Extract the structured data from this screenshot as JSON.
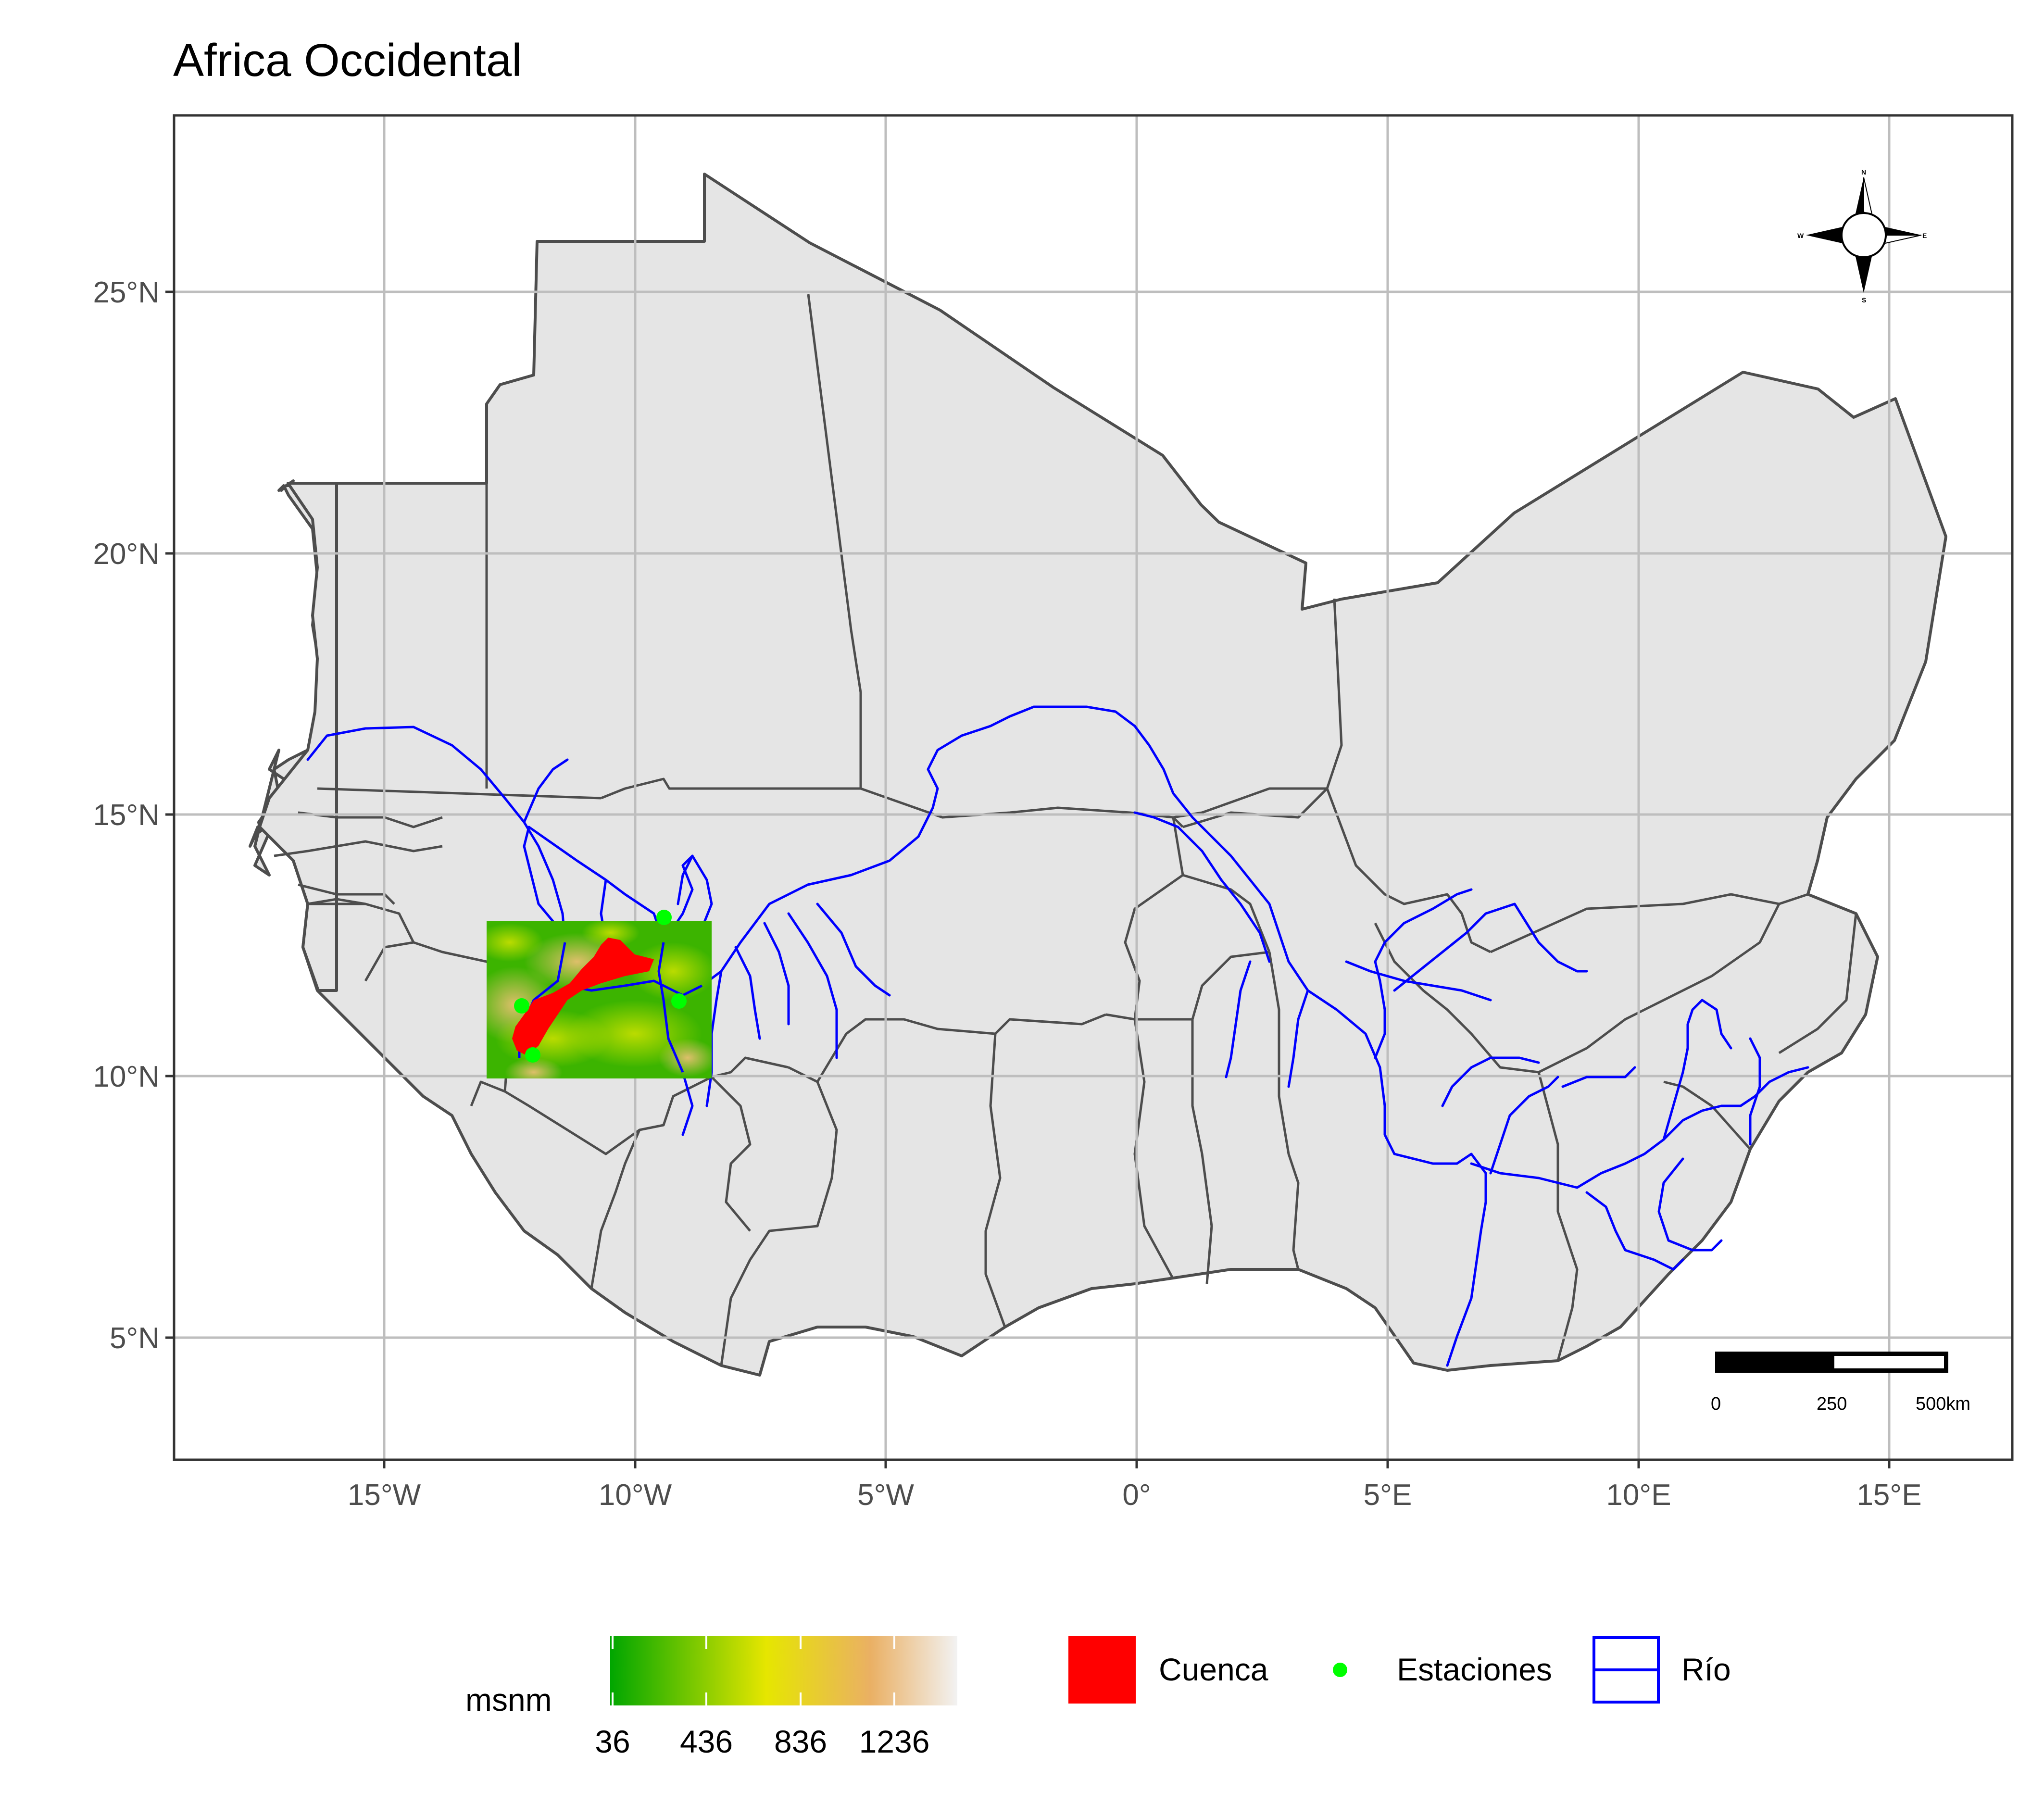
{
  "title": "Africa Occidental",
  "chart_data": {
    "type": "map",
    "title": "Africa Occidental",
    "region": "West Africa",
    "projection": "longitude/latitude",
    "xlim": [
      -19.2,
      17.5
    ],
    "ylim": [
      2.65,
      27.6
    ],
    "grid": true,
    "x_ticks": [
      {
        "value": -15,
        "label": "15°W"
      },
      {
        "value": -10,
        "label": "10°W"
      },
      {
        "value": -5,
        "label": "5°W"
      },
      {
        "value": 0,
        "label": "0°"
      },
      {
        "value": 5,
        "label": "5°E"
      },
      {
        "value": 10,
        "label": "10°E"
      },
      {
        "value": 15,
        "label": "15°E"
      }
    ],
    "y_ticks": [
      {
        "value": 5,
        "label": "5°N"
      },
      {
        "value": 10,
        "label": "10°N"
      },
      {
        "value": 15,
        "label": "15°N"
      },
      {
        "value": 20,
        "label": "20°N"
      },
      {
        "value": 25,
        "label": "25°N"
      }
    ],
    "elevation_raster": {
      "extent": {
        "lon": [
          -13.0,
          -8.55
        ],
        "lat": [
          10.05,
          13.0
        ]
      },
      "units": "msnm",
      "range": [
        36,
        1436
      ]
    },
    "stations": [
      {
        "lon": -9.55,
        "lat": 13.05
      },
      {
        "lon": -12.4,
        "lat": 11.35
      },
      {
        "lon": -9.2,
        "lat": 11.4
      },
      {
        "lon": -12.15,
        "lat": 10.4
      }
    ],
    "legend": {
      "position": "bottom",
      "colorbar": {
        "title": "msnm",
        "ticks": [
          36,
          436,
          836,
          1236
        ],
        "tick_labels": [
          "36",
          "436",
          "836",
          "1236"
        ],
        "colors": [
          "#00a600",
          "#e6e600",
          "#eab064",
          "#f2f2f2"
        ]
      },
      "items": [
        {
          "label": "Cuenca",
          "type": "fill",
          "color": "#ff0000"
        },
        {
          "label": "Estaciones",
          "type": "point",
          "color": "#00ff00"
        },
        {
          "label": "Río",
          "type": "line",
          "color": "#0000ff"
        }
      ]
    },
    "scale_bar": {
      "labels": [
        "0",
        "250",
        "500km"
      ]
    },
    "north_arrow": {
      "labels": [
        "N",
        "E",
        "S",
        "W"
      ]
    }
  },
  "colors": {
    "land": "#e5e5e5",
    "border": "#4d4d4d",
    "grid": "#bebebe",
    "river": "#0000ff",
    "basin": "#ff0000",
    "station": "#00ff00"
  }
}
